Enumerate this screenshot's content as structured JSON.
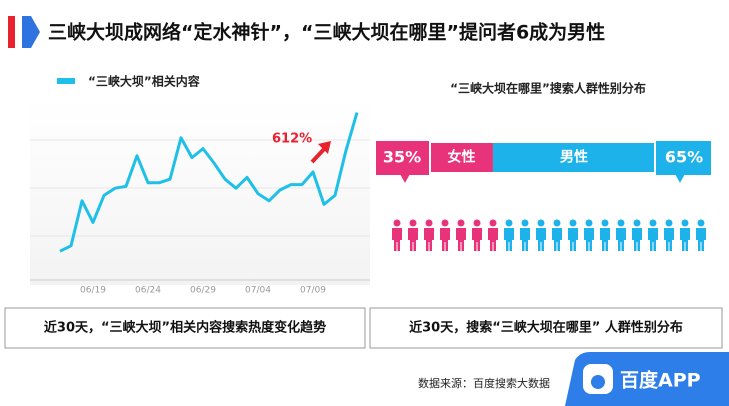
{
  "header": {
    "title": "三峡大坝成网络“定水神针”，“三峡大坝在哪里”提问者6成为男性"
  },
  "chart_data": [
    {
      "type": "line",
      "categories": [
        null,
        null,
        null,
        "06/19",
        null,
        null,
        null,
        null,
        "06/24",
        null,
        null,
        null,
        null,
        "06/29",
        null,
        null,
        null,
        null,
        "07/04",
        null,
        null,
        null,
        null,
        "07/09",
        null,
        null,
        null,
        null
      ],
      "series": [
        {
          "name": "“三峡大坝”相关内容",
          "color": "#1ec0e8",
          "values": [
            16,
            19,
            44,
            32,
            47,
            51,
            52,
            69,
            54,
            54,
            56,
            79,
            68,
            73,
            65,
            56,
            51,
            57,
            48,
            44,
            50,
            53,
            53,
            60,
            42,
            47,
            72,
            93
          ]
        }
      ],
      "ylim": [
        0,
        100
      ],
      "annotation": "612%"
    },
    {
      "type": "gender-split",
      "title": "“三峡大坝在哪里”搜索人群性别分布",
      "categories": [
        "女性",
        "男性"
      ],
      "values": [
        35,
        65
      ],
      "value_labels": [
        "35%",
        "65%"
      ],
      "colors": [
        "#e8337a",
        "#1eb2ea"
      ]
    }
  ],
  "captions": [
    "近30天，“三峡大坝”相关内容搜索热度变化趋势",
    "近30天，搜索“三峡大坝在哪里” 人群性别分布"
  ],
  "source": "数据来源：百度搜索大数据",
  "logo": "百度APP"
}
